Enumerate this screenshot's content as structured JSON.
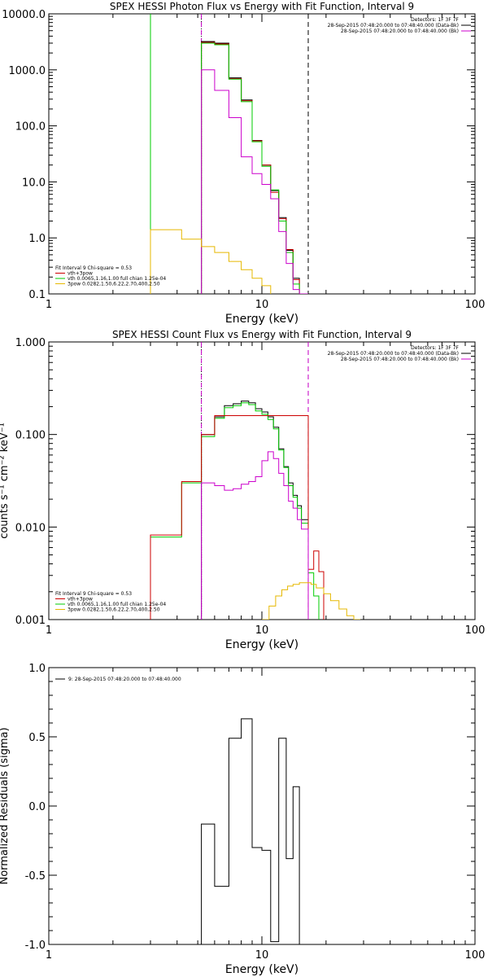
{
  "chart_data": [
    {
      "type": "line",
      "title": "SPEX HESSI Photon Flux vs Energy with Fit Function, Interval 9",
      "xlabel": "Energy (keV)",
      "ylabel": "",
      "xscale": "log",
      "yscale": "log",
      "xlim": [
        1,
        100
      ],
      "ylim": [
        0.1,
        10000
      ],
      "xticks": [
        {
          "v": 1,
          "label": "1"
        },
        {
          "v": 10,
          "label": "10"
        },
        {
          "v": 100,
          "label": "100"
        }
      ],
      "yticks": [
        {
          "v": 0.1,
          "label": "0.1"
        },
        {
          "v": 1,
          "label": "1.0"
        },
        {
          "v": 10,
          "label": "10.0"
        },
        {
          "v": 100,
          "label": "100.0"
        },
        {
          "v": 1000,
          "label": "1000.0"
        },
        {
          "v": 10000,
          "label": "10000.0"
        }
      ],
      "vlines": [
        {
          "x": 3.0,
          "color": "#00cc00",
          "style": "solid"
        },
        {
          "x": 5.2,
          "color": "#000000",
          "style": "dotted"
        },
        {
          "x": 5.2,
          "color": "#cc00cc",
          "style": "dashed"
        },
        {
          "x": 16.5,
          "color": "#000000",
          "style": "dashed"
        }
      ],
      "header_lines": [
        {
          "text": "Detectors: 1F 3F 7F",
          "color": "#000000"
        },
        {
          "text": "28-Sep-2015 07:48:20.000 to 07:48:40.000 (Data-Bk)",
          "color": "#000000"
        },
        {
          "text": "28-Sep-2015 07:48:20.000 to 07:48:40.000 (Bk)",
          "color": "#cc00cc"
        }
      ],
      "legend": [
        {
          "text": "Fit Interval 9   Chi-square = 0.53",
          "color": ""
        },
        {
          "text": "vth+3pow",
          "color": "#cc0000"
        },
        {
          "text": "vth 0.0065,1.16,1.00  full chian 1.25e-04",
          "color": "#00cc00"
        },
        {
          "text": "3pow 0.0282,1.50,6.22,2.70,400,2.50",
          "color": "#e6b800"
        }
      ],
      "series": [
        {
          "color": "#000000",
          "edges": [
            5.2,
            6.0,
            7.0,
            8.0,
            9.0,
            10.0,
            11.0,
            12.0,
            13.0,
            14.0,
            15.0,
            16.5
          ],
          "values": [
            3200,
            3000,
            720,
            290,
            55,
            20,
            7,
            2.3,
            0.6,
            0.19,
            0.1
          ]
        },
        {
          "color": "#cc0000",
          "edges": [
            5.2,
            6.0,
            7.0,
            8.0,
            9.0,
            10.0,
            11.0,
            12.0,
            13.0,
            14.0,
            15.0,
            16.5
          ],
          "values": [
            3100,
            2900,
            700,
            280,
            54,
            20,
            6.5,
            2.2,
            0.62,
            0.18,
            0.1
          ]
        },
        {
          "color": "#00cc00",
          "edges": [
            5.2,
            6.0,
            7.0,
            8.0,
            9.0,
            10.0,
            11.0,
            12.0,
            13.0,
            14.0,
            15.0,
            16.5
          ],
          "values": [
            3000,
            2800,
            680,
            270,
            52,
            19,
            7.2,
            2.0,
            0.55,
            0.15,
            0.1
          ]
        },
        {
          "color": "#cc00cc",
          "edges": [
            5.2,
            6.0,
            7.0,
            8.0,
            9.0,
            10.0,
            11.0,
            12.0,
            13.0,
            14.0,
            15.0,
            16.5
          ],
          "values": [
            1000,
            430,
            140,
            28,
            14,
            9,
            5,
            1.3,
            0.35,
            0.12,
            0.1
          ]
        },
        {
          "color": "#e6b800",
          "edges": [
            3.0,
            4.2,
            5.2,
            6.0,
            7.0,
            8.0,
            9.0,
            10.0,
            11.0
          ],
          "values": [
            1.4,
            0.95,
            0.7,
            0.55,
            0.38,
            0.27,
            0.19,
            0.14
          ]
        }
      ]
    },
    {
      "type": "line",
      "title": "SPEX HESSI Count Flux vs Energy with Fit Function, Interval 9",
      "xlabel": "Energy (keV)",
      "ylabel": "counts s⁻¹ cm⁻² keV⁻¹",
      "xscale": "log",
      "yscale": "log",
      "xlim": [
        1,
        100
      ],
      "ylim": [
        0.001,
        1.0
      ],
      "xticks": [
        {
          "v": 1,
          "label": "1"
        },
        {
          "v": 10,
          "label": "10"
        },
        {
          "v": 100,
          "label": "100"
        }
      ],
      "yticks": [
        {
          "v": 0.001,
          "label": "0.001"
        },
        {
          "v": 0.01,
          "label": "0.010"
        },
        {
          "v": 0.1,
          "label": "0.100"
        },
        {
          "v": 1.0,
          "label": "1.000"
        }
      ],
      "vlines": [
        {
          "x": 5.2,
          "color": "#000000",
          "style": "dotted"
        },
        {
          "x": 16.5,
          "color": "#000000",
          "style": "dashed"
        },
        {
          "x": 5.2,
          "color": "#cc00cc",
          "style": "dashed"
        },
        {
          "x": 16.5,
          "color": "#cc00cc",
          "style": "dashed"
        }
      ],
      "header_lines": [
        {
          "text": "Detectors: 1F 3F 7F",
          "color": "#000000"
        },
        {
          "text": "28-Sep-2015 07:48:20.000 to 07:48:40.000 (Data-Bk)",
          "color": "#000000"
        },
        {
          "text": "28-Sep-2015 07:48:20.000 to 07:48:40.000 (Bk)",
          "color": "#cc00cc"
        }
      ],
      "legend": [
        {
          "text": "Fit Interval 9   Chi-square = 0.53",
          "color": ""
        },
        {
          "text": "vth+3pow",
          "color": "#cc0000"
        },
        {
          "text": "vth 0.0065,1.16,1.00  full chian 1.25e-04",
          "color": "#00cc00"
        },
        {
          "text": "3pow 0.0282,1.50,6.22,2.70,400,2.50",
          "color": "#e6b800"
        }
      ],
      "series": [
        {
          "color": "#000000",
          "edges": [
            5.2,
            6.0,
            6.67,
            7.33,
            8.0,
            8.67,
            9.33,
            10.0,
            10.67,
            11.33,
            12.0,
            12.67,
            13.33,
            14.0,
            14.67,
            15.33,
            16.5
          ],
          "values": [
            0.1,
            0.155,
            0.205,
            0.215,
            0.23,
            0.22,
            0.19,
            0.175,
            0.155,
            0.12,
            0.07,
            0.045,
            0.03,
            0.022,
            0.017,
            0.012
          ]
        },
        {
          "color": "#00cc00",
          "edges": [
            3.0,
            4.2,
            5.2,
            6.0,
            6.67,
            7.33,
            8.0,
            8.67,
            9.33,
            10.0,
            10.67,
            11.33,
            12.0,
            12.67,
            13.33,
            14.0,
            14.67,
            15.33,
            16.5,
            17.5,
            18.5
          ],
          "values": [
            0.0078,
            0.03,
            0.095,
            0.15,
            0.195,
            0.205,
            0.22,
            0.21,
            0.18,
            0.165,
            0.145,
            0.115,
            0.068,
            0.044,
            0.028,
            0.021,
            0.016,
            0.011,
            0.0032,
            0.0018
          ]
        },
        {
          "color": "#cc0000",
          "edges": [
            3.0,
            4.2,
            5.2,
            6.0,
            16.5,
            17.5,
            18.5,
            19.5
          ],
          "values": [
            0.0082,
            0.031,
            0.1,
            0.16,
            0.0035,
            0.0055,
            0.0033
          ]
        },
        {
          "color": "#cc00cc",
          "edges": [
            5.2,
            6.0,
            6.67,
            7.33,
            8.0,
            8.67,
            9.33,
            10.0,
            10.67,
            11.33,
            12.0,
            12.67,
            13.33,
            14.0,
            14.67,
            15.33,
            16.5
          ],
          "values": [
            0.03,
            0.028,
            0.025,
            0.026,
            0.029,
            0.031,
            0.035,
            0.052,
            0.065,
            0.055,
            0.038,
            0.028,
            0.019,
            0.016,
            0.012,
            0.0095
          ]
        },
        {
          "color": "#e6b800",
          "edges": [
            10.0,
            10.8,
            11.6,
            12.4,
            13.2,
            14.0,
            15.0,
            16.0,
            17.0,
            18.0,
            19.5,
            21.0,
            23.0,
            25.0,
            27.0,
            29.0
          ],
          "values": [
            0.001,
            0.0014,
            0.0018,
            0.0021,
            0.0023,
            0.0024,
            0.0025,
            0.0025,
            0.0024,
            0.0022,
            0.0019,
            0.0016,
            0.0013,
            0.0011,
            0.001
          ]
        }
      ]
    },
    {
      "type": "line",
      "title": "",
      "xlabel": "Energy (keV)",
      "ylabel": "Normalized Residuals (sigma)",
      "xscale": "log",
      "yscale": "linear",
      "xlim": [
        1,
        100
      ],
      "ylim": [
        -1.0,
        1.0
      ],
      "xticks": [
        {
          "v": 1,
          "label": "1"
        },
        {
          "v": 10,
          "label": "10"
        },
        {
          "v": 100,
          "label": "100"
        }
      ],
      "yticks": [
        {
          "v": -1.0,
          "label": "-1.0"
        },
        {
          "v": -0.5,
          "label": "-0.5"
        },
        {
          "v": 0.0,
          "label": "0.0"
        },
        {
          "v": 0.5,
          "label": "0.5"
        },
        {
          "v": 1.0,
          "label": "1.0"
        }
      ],
      "vlines": [],
      "header_lines": [],
      "legend": [
        {
          "text": "9: 28-Sep-2015 07:48:20.000 to 07:48:40.000",
          "color": "#000000"
        }
      ],
      "series": [
        {
          "color": "#000000",
          "edges": [
            5.2,
            6.0,
            7.0,
            8.0,
            9.0,
            10.0,
            11.0,
            12.0,
            13.0,
            14.0,
            15.0,
            16.5
          ],
          "values": [
            -0.13,
            -0.58,
            0.49,
            0.63,
            -0.3,
            -0.32,
            -0.98,
            0.49,
            -0.38,
            0.14,
            -1.0
          ]
        }
      ]
    }
  ]
}
